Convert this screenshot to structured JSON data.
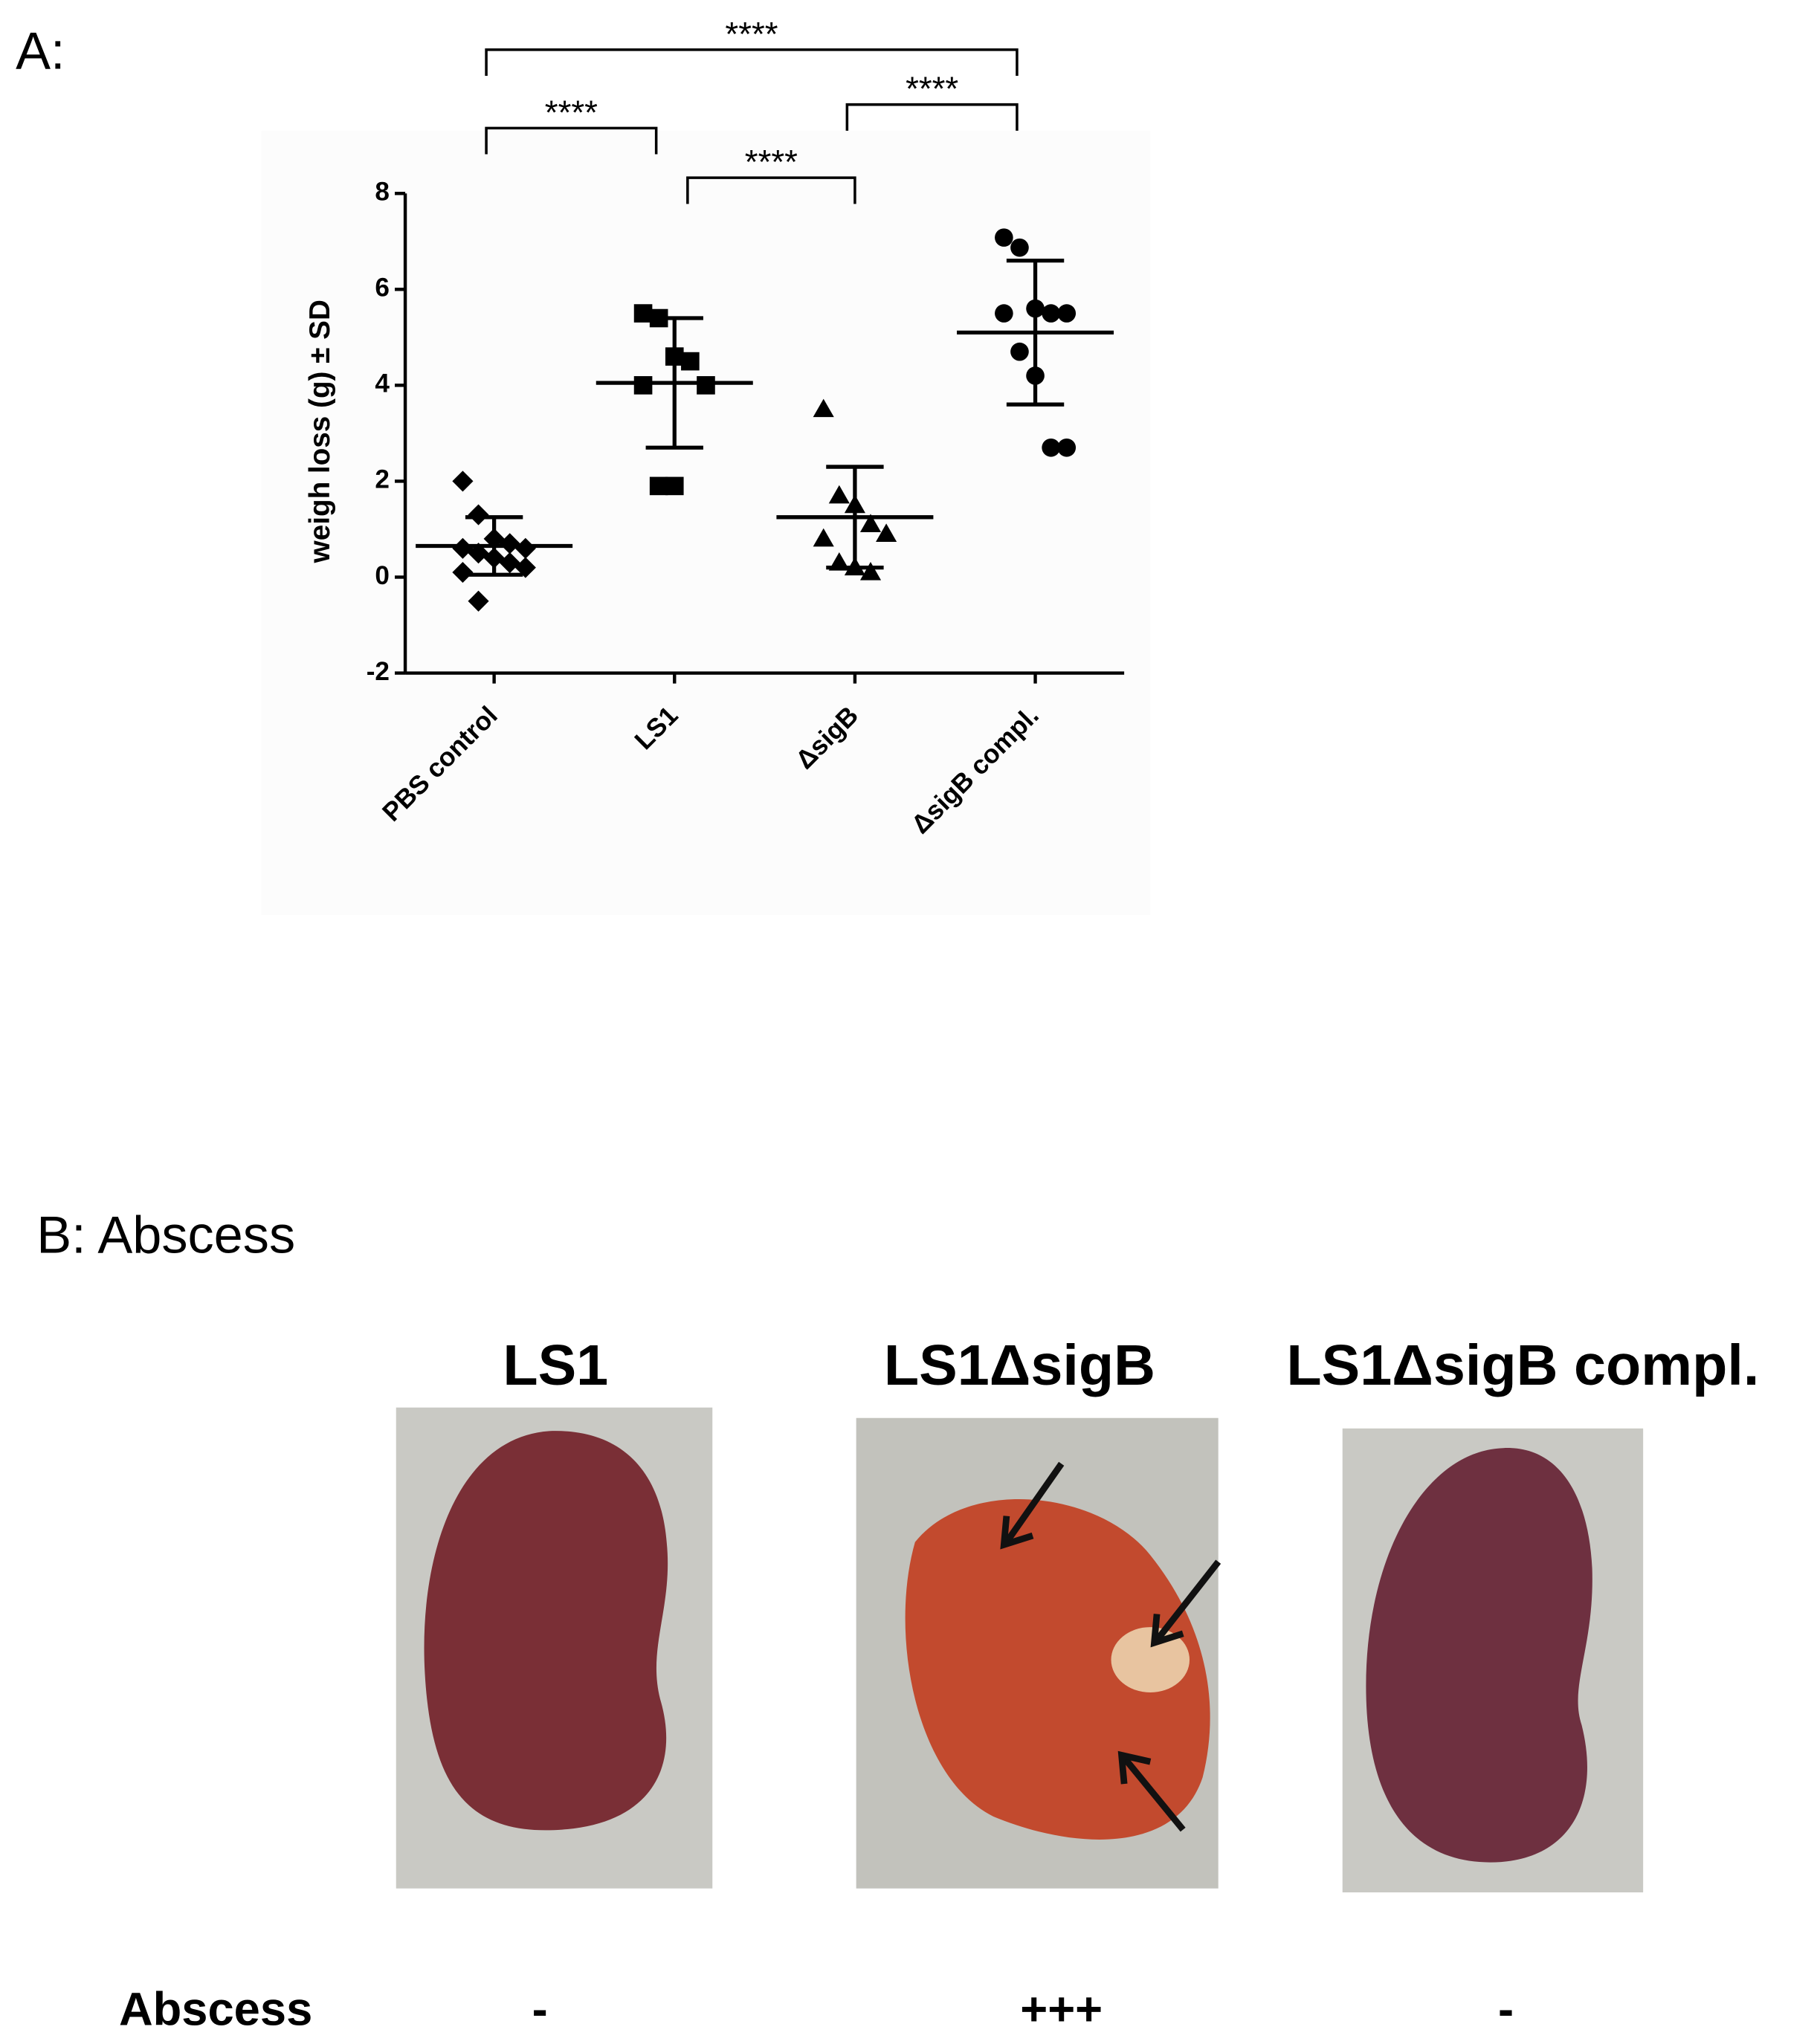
{
  "panel_labels": [
    "A:",
    "B: Abscess"
  ],
  "chart_data": {
    "type": "scatter",
    "y_label": "weigh loss (g) ± SD",
    "categories": [
      "PBS control",
      "LS1",
      "ΔsigB",
      "ΔsigB compl."
    ],
    "ylim": [
      -2,
      8
    ],
    "yticks": [
      -2,
      0,
      2,
      4,
      6,
      8
    ],
    "groups": [
      {
        "marker": "diamond",
        "values": [
          2.0,
          1.3,
          0.8,
          0.7,
          0.6,
          0.6,
          0.5,
          0.4,
          0.3,
          0.2,
          0.1,
          -0.5
        ],
        "mean": 0.65,
        "sd": 0.6
      },
      {
        "marker": "square",
        "values": [
          5.5,
          5.4,
          4.6,
          4.5,
          4.0,
          4.0,
          1.9,
          1.9
        ],
        "mean": 4.05,
        "sd": 1.35
      },
      {
        "marker": "triangle",
        "values": [
          3.5,
          1.7,
          1.5,
          1.1,
          0.9,
          0.8,
          0.3,
          0.2,
          0.1
        ],
        "mean": 1.25,
        "sd": 1.05
      },
      {
        "marker": "circle",
        "values": [
          7.08,
          6.87,
          5.6,
          5.5,
          5.5,
          5.5,
          4.7,
          4.2,
          2.7,
          2.7
        ],
        "mean": 5.1,
        "sd": 1.5
      }
    ],
    "color": "#000000",
    "significance": [
      {
        "from": 0,
        "to": 3,
        "label": "****"
      },
      {
        "from": 0,
        "to": 1,
        "label": "****"
      },
      {
        "from": 2,
        "to": 3,
        "label": "****"
      },
      {
        "from": 1,
        "to": 2,
        "label": "****"
      }
    ]
  },
  "panel_b": {
    "titles": [
      "LS1",
      "LS1ΔsigB",
      "LS1ΔsigB compl."
    ],
    "row_label": "Abscess",
    "scores": [
      "-",
      "+++",
      "-"
    ]
  }
}
